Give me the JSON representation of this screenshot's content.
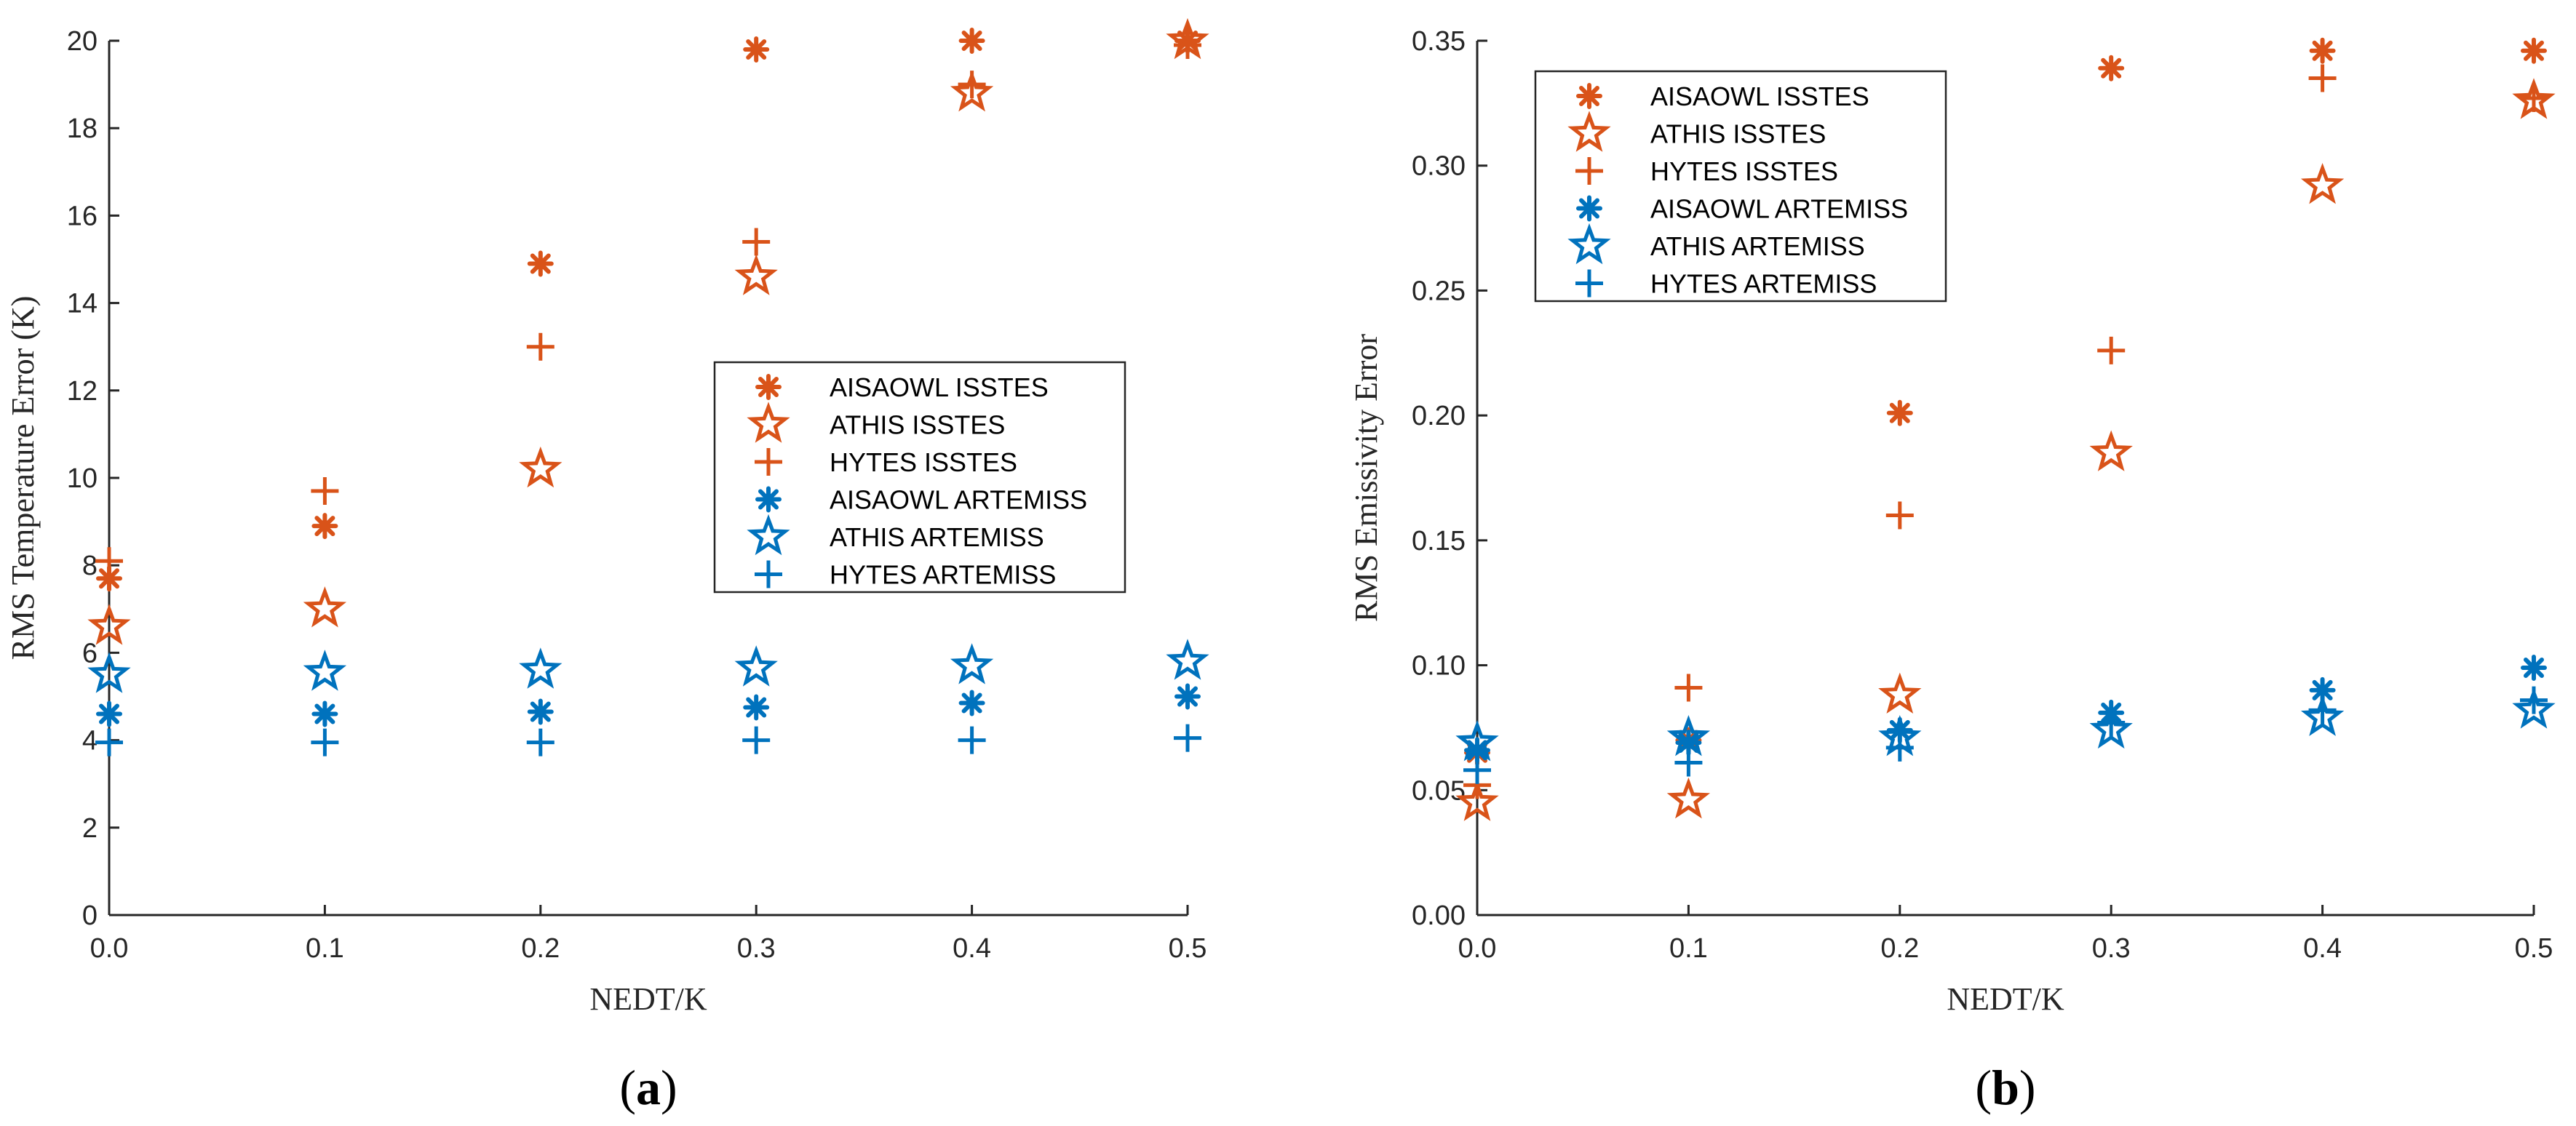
{
  "colors": {
    "isstes": "#D95319",
    "artemiss": "#0072BD",
    "axis": "#262626"
  },
  "chart_data": [
    {
      "type": "scatter",
      "panel_label": {
        "open": "(",
        "letter": "a",
        "close": ")"
      },
      "xlabel": "NEDT/K",
      "ylabel": "RMS Temperature Error (K)",
      "xlim": [
        0,
        0.5
      ],
      "ylim": [
        0,
        20
      ],
      "xticks": [
        0,
        0.1,
        0.2,
        0.3,
        0.4,
        0.5
      ],
      "xtick_labels": [
        "0.0",
        "0.1",
        "0.2",
        "0.3",
        "0.4",
        "0.5"
      ],
      "yticks": [
        0,
        2,
        4,
        6,
        8,
        10,
        12,
        14,
        16,
        18,
        20
      ],
      "ytick_labels": [
        "0",
        "2",
        "4",
        "6",
        "8",
        "10",
        "12",
        "14",
        "16",
        "18",
        "20"
      ],
      "legend_position": "center-right",
      "x": [
        0,
        0.1,
        0.2,
        0.3,
        0.4,
        0.5
      ],
      "series": [
        {
          "name": "AISAOWL ISSTES",
          "marker": "asterisk",
          "group": "isstes",
          "values": [
            7.7,
            8.9,
            14.9,
            19.8,
            20.0,
            20.0
          ]
        },
        {
          "name": "ATHIS ISSTES",
          "marker": "star",
          "group": "isstes",
          "values": [
            6.6,
            7.0,
            10.2,
            14.6,
            18.8,
            20.0
          ]
        },
        {
          "name": "HYTES ISSTES",
          "marker": "plus",
          "group": "isstes",
          "values": [
            8.1,
            9.7,
            13.0,
            15.4,
            19.0,
            19.9
          ]
        },
        {
          "name": "AISAOWL ARTEMISS",
          "marker": "asterisk",
          "group": "artemiss",
          "values": [
            4.6,
            4.6,
            4.65,
            4.75,
            4.85,
            5.0
          ]
        },
        {
          "name": "ATHIS ARTEMISS",
          "marker": "star",
          "group": "artemiss",
          "values": [
            5.5,
            5.55,
            5.6,
            5.65,
            5.7,
            5.8
          ]
        },
        {
          "name": "HYTES ARTEMISS",
          "marker": "plus",
          "group": "artemiss",
          "values": [
            3.95,
            3.95,
            3.95,
            4.0,
            4.0,
            4.05
          ]
        }
      ]
    },
    {
      "type": "scatter",
      "panel_label": {
        "open": "(",
        "letter": "b",
        "close": ")"
      },
      "xlabel": "NEDT/K",
      "ylabel": "RMS Emissivity Error",
      "xlim": [
        0,
        0.5
      ],
      "ylim": [
        0,
        0.35
      ],
      "xticks": [
        0,
        0.1,
        0.2,
        0.3,
        0.4,
        0.5
      ],
      "xtick_labels": [
        "0.0",
        "0.1",
        "0.2",
        "0.3",
        "0.4",
        "0.5"
      ],
      "yticks": [
        0,
        0.05,
        0.1,
        0.15,
        0.2,
        0.25,
        0.3,
        0.35
      ],
      "ytick_labels": [
        "0.00",
        "0.05",
        "0.10",
        "0.15",
        "0.20",
        "0.25",
        "0.30",
        "0.35"
      ],
      "legend_position": "top-left",
      "x": [
        0,
        0.1,
        0.2,
        0.3,
        0.4,
        0.5
      ],
      "series": [
        {
          "name": "AISAOWL ISSTES",
          "marker": "asterisk",
          "group": "isstes",
          "values": [
            0.065,
            0.07,
            0.201,
            0.339,
            0.346,
            0.346
          ]
        },
        {
          "name": "ATHIS ISSTES",
          "marker": "star",
          "group": "isstes",
          "values": [
            0.045,
            0.046,
            0.088,
            0.185,
            0.292,
            0.326
          ]
        },
        {
          "name": "HYTES ISSTES",
          "marker": "plus",
          "group": "isstes",
          "values": [
            0.052,
            0.091,
            0.16,
            0.226,
            0.335,
            0.327
          ]
        },
        {
          "name": "AISAOWL ARTEMISS",
          "marker": "asterisk",
          "group": "artemiss",
          "values": [
            0.066,
            0.069,
            0.074,
            0.081,
            0.09,
            0.099
          ]
        },
        {
          "name": "ATHIS ARTEMISS",
          "marker": "star",
          "group": "artemiss",
          "values": [
            0.069,
            0.071,
            0.071,
            0.074,
            0.079,
            0.082
          ]
        },
        {
          "name": "HYTES ARTEMISS",
          "marker": "plus",
          "group": "artemiss",
          "values": [
            0.058,
            0.061,
            0.067,
            0.077,
            0.082,
            0.086
          ]
        }
      ]
    }
  ]
}
